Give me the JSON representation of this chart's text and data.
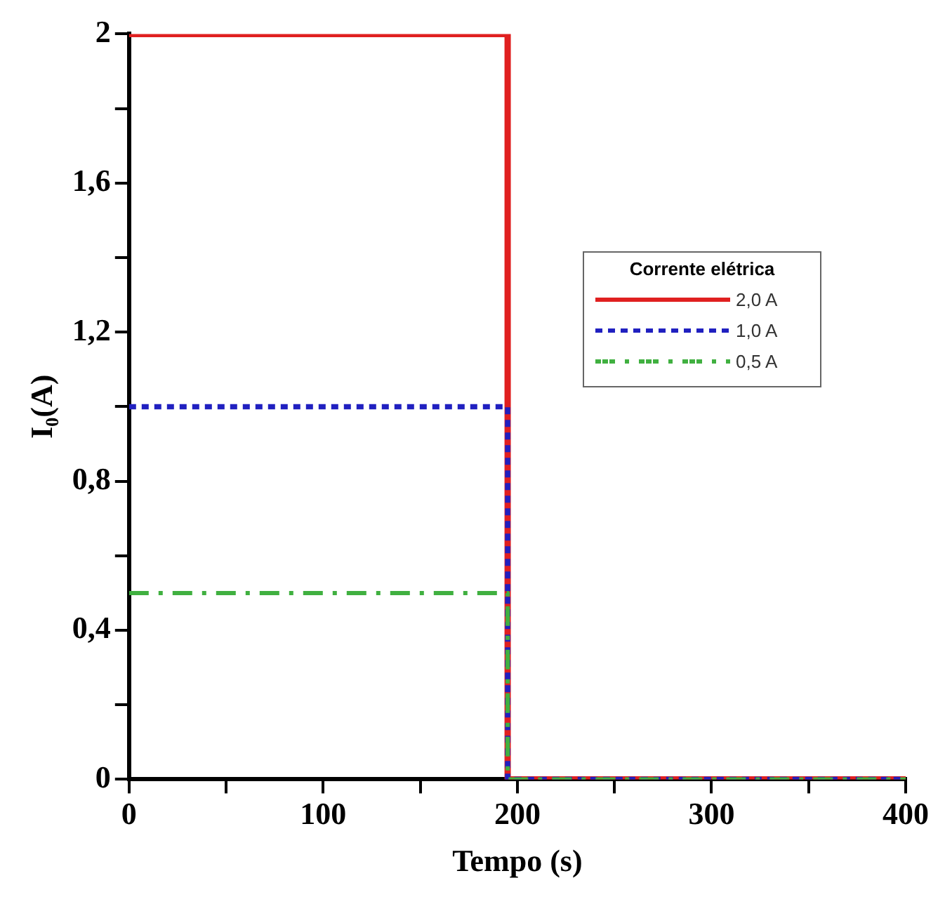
{
  "chart_data": {
    "type": "line",
    "xlabel": "Tempo (s)",
    "ylabel": "I₀(A)",
    "legend_title": "Corrente elétrica",
    "legend": "right",
    "marker": "none",
    "xlim": [
      0,
      400
    ],
    "xticks": [
      0,
      {
        "value": 50,
        "label": null
      },
      100,
      {
        "value": 150,
        "label": null
      },
      200,
      {
        "value": 250,
        "label": null
      },
      300,
      {
        "value": 350,
        "label": null
      },
      400
    ],
    "ylim": [
      0,
      2
    ],
    "yticks": [
      0,
      {
        "value": 0.2,
        "label": null
      },
      {
        "value": 0.4,
        "label": "0,4"
      },
      {
        "value": 0.6,
        "label": null
      },
      {
        "value": 0.8,
        "label": "0,8"
      },
      {
        "value": 1,
        "label": null
      },
      {
        "value": 1.2,
        "label": "1,2"
      },
      {
        "value": 1.4,
        "label": null
      },
      {
        "value": 1.6,
        "label": "1,6"
      },
      {
        "value": 1.8,
        "label": null
      },
      2
    ],
    "series": [
      {
        "name": "2,0 A",
        "color": "#e02020",
        "line_style": "solid",
        "x": [
          0,
          195,
          195,
          400
        ],
        "values": [
          2,
          2,
          0,
          0
        ]
      },
      {
        "name": "1,0 A",
        "color": "#2020c0",
        "line_style": "dotted",
        "x": [
          0,
          195,
          195,
          400
        ],
        "values": [
          1,
          1,
          0,
          0
        ]
      },
      {
        "name": "0,5 A",
        "color": "#40b040",
        "line_style": "dashed",
        "x": [
          0,
          195,
          195,
          400
        ],
        "values": [
          0.5,
          0.5,
          0,
          0
        ]
      }
    ]
  }
}
